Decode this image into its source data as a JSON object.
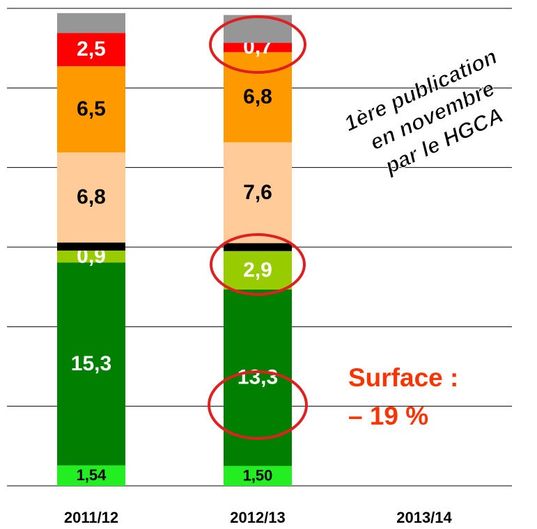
{
  "chart_data": {
    "type": "stacked_bar",
    "categories": [
      "2011/12",
      "2012/13",
      "2013/14"
    ],
    "series": [
      {
        "color": "#22ee22",
        "values": [
          1.54,
          1.5,
          null
        ],
        "value_labels": [
          "1,54",
          "1,50",
          null
        ]
      },
      {
        "color": "#007f00",
        "values": [
          15.3,
          13.3,
          null
        ],
        "value_labels": [
          "15,3",
          "13,3",
          null
        ]
      },
      {
        "color": "#99cc00",
        "values": [
          0.9,
          2.9,
          null
        ],
        "value_labels": [
          "0,9",
          "2,9",
          null
        ]
      },
      {
        "color": "#000000",
        "values": [
          0.6,
          0.6,
          null
        ],
        "value_labels": [
          null,
          null,
          null
        ]
      },
      {
        "color": "#ffcc99",
        "values": [
          6.8,
          7.6,
          null
        ],
        "value_labels": [
          "6,8",
          "7,6",
          null
        ]
      },
      {
        "color": "#ff9900",
        "values": [
          6.5,
          6.8,
          null
        ],
        "value_labels": [
          "6,5",
          "6,8",
          null
        ]
      },
      {
        "color": "#ff0000",
        "values": [
          2.5,
          0.7,
          null
        ],
        "value_labels": [
          "2,5",
          "0,7",
          null
        ]
      },
      {
        "color": "#969696",
        "values": [
          1.5,
          2.1,
          null
        ],
        "value_labels": [
          null,
          null,
          null
        ]
      }
    ],
    "ylim": [
      0,
      36
    ],
    "yticks": [
      0,
      6,
      12,
      18,
      24,
      30,
      36
    ],
    "grid": true,
    "annotations": [
      "1ère publication",
      "en novembre",
      "par le HGCA",
      "Surface :",
      "– 19 %"
    ]
  }
}
